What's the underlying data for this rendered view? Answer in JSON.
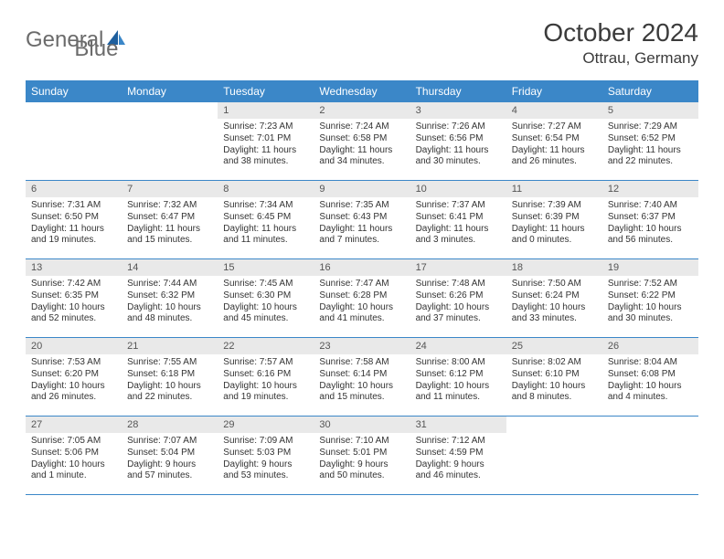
{
  "brand": {
    "name_left": "General",
    "name_right": "Blue",
    "accent": "#2f79bf"
  },
  "header": {
    "month_title": "October 2024",
    "location": "Ottrau, Germany"
  },
  "styles": {
    "header_bg": "#3b87c8",
    "header_fg": "#ffffff",
    "daynum_bg": "#e9e9e9",
    "row_border": "#3b87c8",
    "body_fontsize": 10,
    "title_fontsize": 28,
    "location_fontsize": 17
  },
  "dow": [
    "Sunday",
    "Monday",
    "Tuesday",
    "Wednesday",
    "Thursday",
    "Friday",
    "Saturday"
  ],
  "rows": [
    [
      null,
      null,
      {
        "n": "1",
        "sr": "7:23 AM",
        "ss": "7:01 PM",
        "dl": "11 hours and 38 minutes."
      },
      {
        "n": "2",
        "sr": "7:24 AM",
        "ss": "6:58 PM",
        "dl": "11 hours and 34 minutes."
      },
      {
        "n": "3",
        "sr": "7:26 AM",
        "ss": "6:56 PM",
        "dl": "11 hours and 30 minutes."
      },
      {
        "n": "4",
        "sr": "7:27 AM",
        "ss": "6:54 PM",
        "dl": "11 hours and 26 minutes."
      },
      {
        "n": "5",
        "sr": "7:29 AM",
        "ss": "6:52 PM",
        "dl": "11 hours and 22 minutes."
      }
    ],
    [
      {
        "n": "6",
        "sr": "7:31 AM",
        "ss": "6:50 PM",
        "dl": "11 hours and 19 minutes."
      },
      {
        "n": "7",
        "sr": "7:32 AM",
        "ss": "6:47 PM",
        "dl": "11 hours and 15 minutes."
      },
      {
        "n": "8",
        "sr": "7:34 AM",
        "ss": "6:45 PM",
        "dl": "11 hours and 11 minutes."
      },
      {
        "n": "9",
        "sr": "7:35 AM",
        "ss": "6:43 PM",
        "dl": "11 hours and 7 minutes."
      },
      {
        "n": "10",
        "sr": "7:37 AM",
        "ss": "6:41 PM",
        "dl": "11 hours and 3 minutes."
      },
      {
        "n": "11",
        "sr": "7:39 AM",
        "ss": "6:39 PM",
        "dl": "11 hours and 0 minutes."
      },
      {
        "n": "12",
        "sr": "7:40 AM",
        "ss": "6:37 PM",
        "dl": "10 hours and 56 minutes."
      }
    ],
    [
      {
        "n": "13",
        "sr": "7:42 AM",
        "ss": "6:35 PM",
        "dl": "10 hours and 52 minutes."
      },
      {
        "n": "14",
        "sr": "7:44 AM",
        "ss": "6:32 PM",
        "dl": "10 hours and 48 minutes."
      },
      {
        "n": "15",
        "sr": "7:45 AM",
        "ss": "6:30 PM",
        "dl": "10 hours and 45 minutes."
      },
      {
        "n": "16",
        "sr": "7:47 AM",
        "ss": "6:28 PM",
        "dl": "10 hours and 41 minutes."
      },
      {
        "n": "17",
        "sr": "7:48 AM",
        "ss": "6:26 PM",
        "dl": "10 hours and 37 minutes."
      },
      {
        "n": "18",
        "sr": "7:50 AM",
        "ss": "6:24 PM",
        "dl": "10 hours and 33 minutes."
      },
      {
        "n": "19",
        "sr": "7:52 AM",
        "ss": "6:22 PM",
        "dl": "10 hours and 30 minutes."
      }
    ],
    [
      {
        "n": "20",
        "sr": "7:53 AM",
        "ss": "6:20 PM",
        "dl": "10 hours and 26 minutes."
      },
      {
        "n": "21",
        "sr": "7:55 AM",
        "ss": "6:18 PM",
        "dl": "10 hours and 22 minutes."
      },
      {
        "n": "22",
        "sr": "7:57 AM",
        "ss": "6:16 PM",
        "dl": "10 hours and 19 minutes."
      },
      {
        "n": "23",
        "sr": "7:58 AM",
        "ss": "6:14 PM",
        "dl": "10 hours and 15 minutes."
      },
      {
        "n": "24",
        "sr": "8:00 AM",
        "ss": "6:12 PM",
        "dl": "10 hours and 11 minutes."
      },
      {
        "n": "25",
        "sr": "8:02 AM",
        "ss": "6:10 PM",
        "dl": "10 hours and 8 minutes."
      },
      {
        "n": "26",
        "sr": "8:04 AM",
        "ss": "6:08 PM",
        "dl": "10 hours and 4 minutes."
      }
    ],
    [
      {
        "n": "27",
        "sr": "7:05 AM",
        "ss": "5:06 PM",
        "dl": "10 hours and 1 minute."
      },
      {
        "n": "28",
        "sr": "7:07 AM",
        "ss": "5:04 PM",
        "dl": "9 hours and 57 minutes."
      },
      {
        "n": "29",
        "sr": "7:09 AM",
        "ss": "5:03 PM",
        "dl": "9 hours and 53 minutes."
      },
      {
        "n": "30",
        "sr": "7:10 AM",
        "ss": "5:01 PM",
        "dl": "9 hours and 50 minutes."
      },
      {
        "n": "31",
        "sr": "7:12 AM",
        "ss": "4:59 PM",
        "dl": "9 hours and 46 minutes."
      },
      null,
      null
    ]
  ],
  "labels": {
    "sunrise": "Sunrise: ",
    "sunset": "Sunset: ",
    "daylight": "Daylight: "
  }
}
